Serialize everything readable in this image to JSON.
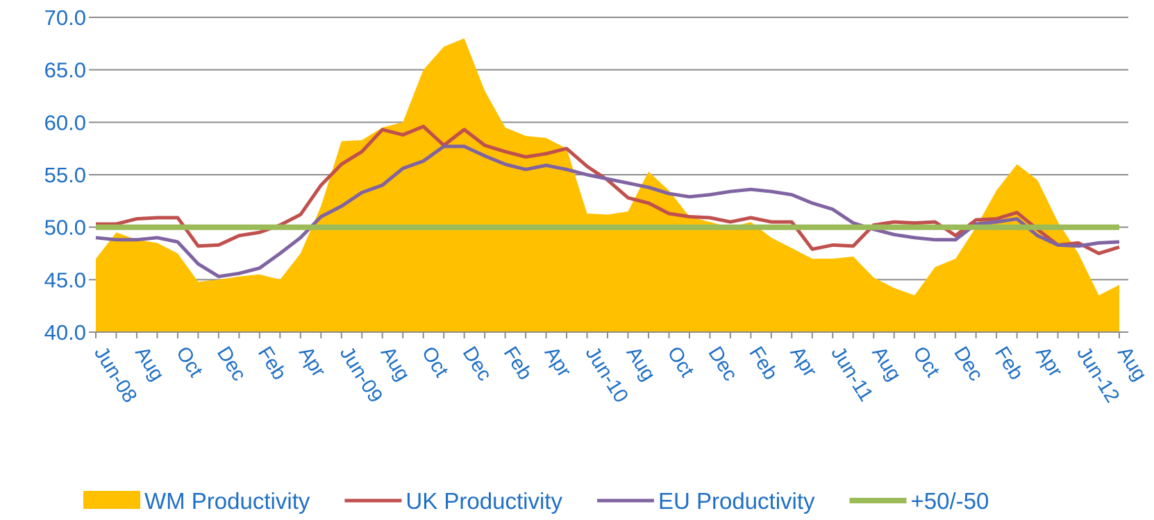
{
  "chart_data": {
    "type": "line",
    "categories": [
      "Jun-08",
      null,
      "Aug",
      null,
      "Oct",
      null,
      "Dec",
      null,
      "Feb",
      null,
      "Apr",
      null,
      "Jun-09",
      null,
      "Aug",
      null,
      "Oct",
      null,
      "Dec",
      null,
      "Feb",
      null,
      "Apr",
      null,
      "Jun-10",
      null,
      "Aug",
      null,
      "Oct",
      null,
      "Dec",
      null,
      "Feb",
      null,
      "Apr",
      null,
      "Jun-11",
      null,
      "Aug",
      null,
      "Oct",
      null,
      "Dec",
      null,
      "Feb",
      null,
      "Apr",
      null,
      "Jun-12",
      null,
      "Aug"
    ],
    "series": [
      {
        "name": "WM Productivity",
        "type": "area",
        "color": "#ffc000",
        "values": [
          47,
          49.5,
          48.8,
          48.5,
          47.5,
          44.8,
          45,
          45.3,
          45.5,
          45,
          47.5,
          52,
          58.2,
          58.3,
          59.5,
          60,
          65,
          67.2,
          68,
          63,
          59.5,
          58.7,
          58.5,
          57.5,
          51.3,
          51.2,
          51.5,
          55.3,
          53.5,
          51,
          50.5,
          50,
          50.5,
          49,
          48,
          47,
          47,
          47.2,
          45.2,
          44.2,
          43.5,
          46.2,
          47,
          50,
          53.5,
          56,
          54.5,
          50.5,
          47.5,
          43.5,
          44.5
        ]
      },
      {
        "name": "UK Productivity",
        "type": "line",
        "color": "#c0504d",
        "values": [
          50.3,
          50.3,
          50.8,
          50.9,
          50.9,
          48.2,
          48.3,
          49.2,
          49.5,
          50.2,
          51.2,
          54,
          56,
          57.2,
          59.3,
          58.8,
          59.6,
          57.8,
          59.3,
          57.8,
          57.2,
          56.7,
          57,
          57.5,
          55.8,
          54.5,
          52.8,
          52.3,
          51.3,
          51,
          50.9,
          50.5,
          50.9,
          50.5,
          50.5,
          47.9,
          48.3,
          48.2,
          50.2,
          50.5,
          50.4,
          50.5,
          49.2,
          50.7,
          50.8,
          51.4,
          49.8,
          48.3,
          48.5,
          47.5,
          48.1
        ]
      },
      {
        "name": "EU Productivity",
        "type": "line",
        "color": "#8064a2",
        "values": [
          49,
          48.8,
          48.8,
          49,
          48.6,
          46.5,
          45.3,
          45.6,
          46.1,
          47.5,
          49,
          51,
          52,
          53.3,
          54,
          55.6,
          56.3,
          57.7,
          57.7,
          56.8,
          56,
          55.5,
          55.9,
          55.5,
          55,
          54.6,
          54.2,
          53.8,
          53.2,
          52.9,
          53.1,
          53.4,
          53.6,
          53.4,
          53.1,
          52.3,
          51.7,
          50.4,
          49.8,
          49.3,
          49,
          48.8,
          48.8,
          50.3,
          50.5,
          50.8,
          49.2,
          48.3,
          48.2,
          48.5,
          48.6
        ]
      },
      {
        "name": "+50/-50",
        "type": "line",
        "color": "#9bbb59",
        "values": [
          50,
          50,
          50,
          50,
          50,
          50,
          50,
          50,
          50,
          50,
          50,
          50,
          50,
          50,
          50,
          50,
          50,
          50,
          50,
          50,
          50,
          50,
          50,
          50,
          50,
          50,
          50,
          50,
          50,
          50,
          50,
          50,
          50,
          50,
          50,
          50,
          50,
          50,
          50,
          50,
          50,
          50,
          50,
          50,
          50,
          50,
          50,
          50,
          50,
          50,
          50
        ]
      }
    ],
    "ylim": [
      40,
      70
    ],
    "yticks": [
      {
        "value": 40,
        "label": "40.0"
      },
      {
        "value": 45,
        "label": "45.0"
      },
      {
        "value": 50,
        "label": "50.0"
      },
      {
        "value": 55,
        "label": "55.0"
      },
      {
        "value": 60,
        "label": "60.0"
      },
      {
        "value": 65,
        "label": "65.0"
      },
      {
        "value": 70,
        "label": "70.0"
      }
    ],
    "grid": true,
    "legend": "bottom"
  }
}
